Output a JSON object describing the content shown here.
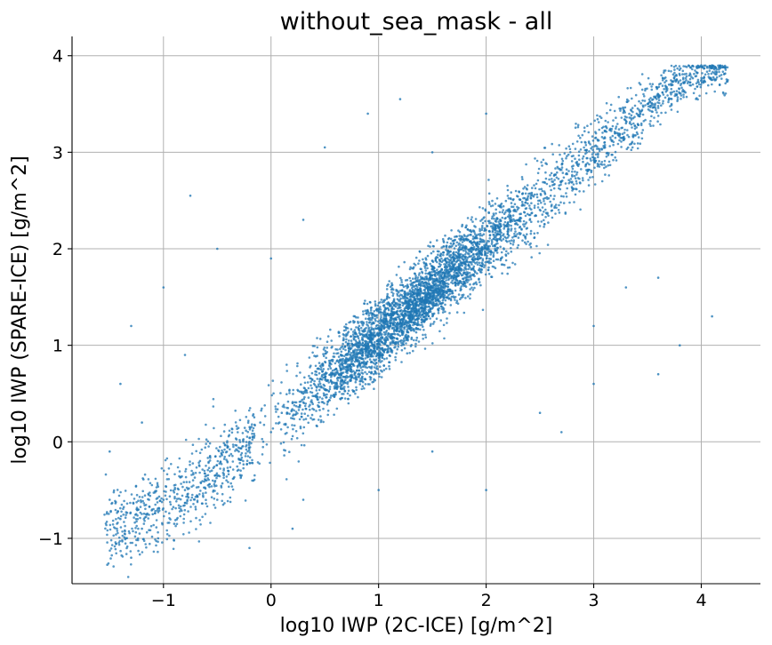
{
  "chart_data": {
    "type": "scatter",
    "title": "without_sea_mask - all",
    "xlabel": "log10 IWP (2C-ICE) [g/m^2]",
    "ylabel": "log10 IWP (SPARE-ICE) [g/m^2]",
    "xlim": [
      -1.85,
      4.55
    ],
    "ylim": [
      -1.47,
      4.2
    ],
    "x_ticks": [
      -1,
      0,
      1,
      2,
      3,
      4
    ],
    "y_ticks": [
      -1,
      0,
      1,
      2,
      3,
      4
    ],
    "x_tick_labels": [
      "−1",
      "0",
      "1",
      "2",
      "3",
      "4"
    ],
    "y_tick_labels": [
      "−1",
      "0",
      "1",
      "2",
      "3",
      "4"
    ],
    "grid": true,
    "color": "#1f77b4",
    "distribution_summary": {
      "trend_line": [
        [
          -1.5,
          -0.9
        ],
        [
          -1.0,
          -0.7
        ],
        [
          0.0,
          0.15
        ],
        [
          1.0,
          1.1
        ],
        [
          2.0,
          2.05
        ],
        [
          3.0,
          3.0
        ],
        [
          3.8,
          3.75
        ],
        [
          4.25,
          3.88
        ]
      ],
      "y_saturation": 3.9,
      "x_range_of_points": [
        -1.55,
        4.25
      ]
    },
    "series": [
      {
        "points": [
          [
            -1.5,
            -0.6
          ],
          [
            -1.4,
            -0.8
          ],
          [
            -1.35,
            -1.0
          ],
          [
            -1.3,
            -1.2
          ],
          [
            -1.25,
            -0.7
          ],
          [
            -1.2,
            -0.9
          ],
          [
            -1.1,
            -0.75
          ],
          [
            -1.05,
            -1.0
          ],
          [
            -1.0,
            -0.6
          ],
          [
            -0.9,
            -0.85
          ],
          [
            -0.8,
            -0.5
          ],
          [
            -0.7,
            -0.7
          ],
          [
            -0.6,
            -0.4
          ],
          [
            -0.5,
            -0.6
          ],
          [
            -0.4,
            -0.3
          ],
          [
            -0.3,
            -0.1
          ],
          [
            -0.2,
            0.0
          ],
          [
            -0.1,
            0.2
          ],
          [
            0.0,
            0.1
          ],
          [
            0.1,
            0.3
          ],
          [
            0.2,
            0.4
          ],
          [
            0.3,
            0.5
          ],
          [
            0.4,
            0.6
          ],
          [
            0.5,
            0.7
          ],
          [
            0.6,
            0.75
          ],
          [
            0.7,
            0.9
          ],
          [
            0.8,
            0.95
          ],
          [
            0.9,
            1.0
          ],
          [
            1.0,
            1.1
          ],
          [
            1.1,
            1.2
          ],
          [
            1.2,
            1.25
          ],
          [
            1.3,
            1.35
          ],
          [
            1.4,
            1.45
          ],
          [
            1.5,
            1.5
          ],
          [
            1.6,
            1.6
          ],
          [
            1.7,
            1.7
          ],
          [
            1.8,
            1.75
          ],
          [
            1.9,
            1.85
          ],
          [
            2.0,
            2.0
          ],
          [
            2.1,
            2.1
          ],
          [
            2.2,
            2.15
          ],
          [
            2.3,
            2.3
          ],
          [
            2.4,
            2.35
          ],
          [
            2.5,
            2.5
          ],
          [
            2.6,
            2.55
          ],
          [
            2.7,
            2.7
          ],
          [
            2.8,
            2.75
          ],
          [
            2.9,
            2.9
          ],
          [
            3.0,
            3.0
          ],
          [
            3.1,
            3.1
          ],
          [
            3.2,
            3.2
          ],
          [
            3.3,
            3.3
          ],
          [
            3.4,
            3.4
          ],
          [
            3.5,
            3.5
          ],
          [
            3.6,
            3.6
          ],
          [
            3.7,
            3.7
          ],
          [
            3.8,
            3.8
          ],
          [
            3.9,
            3.88
          ],
          [
            4.0,
            3.9
          ],
          [
            4.1,
            3.9
          ],
          [
            4.2,
            3.88
          ],
          [
            -1.4,
            0.6
          ],
          [
            -1.3,
            1.2
          ],
          [
            -1.0,
            1.6
          ],
          [
            -0.5,
            2.0
          ],
          [
            0.0,
            1.9
          ],
          [
            0.5,
            3.05
          ],
          [
            0.9,
            3.4
          ],
          [
            1.2,
            3.55
          ],
          [
            1.5,
            3.0
          ],
          [
            2.0,
            3.4
          ],
          [
            1.0,
            -0.5
          ],
          [
            1.5,
            -0.1
          ],
          [
            2.0,
            -0.5
          ],
          [
            2.5,
            0.3
          ],
          [
            3.0,
            0.6
          ],
          [
            3.0,
            1.2
          ],
          [
            3.6,
            0.7
          ],
          [
            3.8,
            1.0
          ],
          [
            4.1,
            1.3
          ],
          [
            3.6,
            1.7
          ],
          [
            3.3,
            1.6
          ],
          [
            -0.2,
            -1.1
          ],
          [
            0.3,
            -0.6
          ],
          [
            -0.75,
            2.55
          ],
          [
            0.3,
            2.3
          ],
          [
            -1.5,
            -0.1
          ],
          [
            -1.2,
            0.2
          ],
          [
            -0.8,
            0.9
          ],
          [
            0.2,
            -0.9
          ],
          [
            2.7,
            0.1
          ]
        ]
      }
    ]
  }
}
